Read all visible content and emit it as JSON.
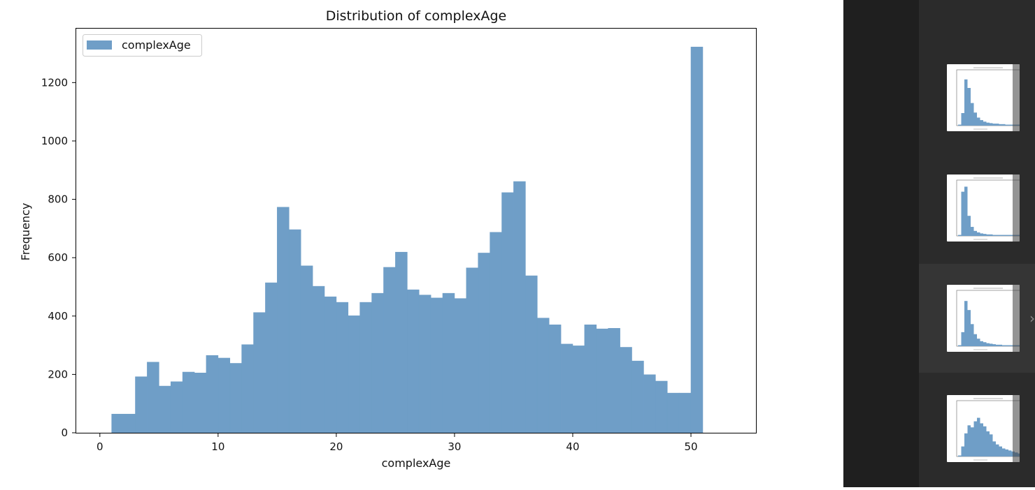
{
  "chart_data": {
    "type": "histogram",
    "title": "Distribution of complexAge",
    "xlabel": "complexAge",
    "ylabel": "Frequency",
    "legend": {
      "label": "complexAge",
      "position": "top-left"
    },
    "color": "#6f9ec7",
    "xlim": [
      -2,
      55.5
    ],
    "ylim": [
      0,
      1385
    ],
    "xticks": [
      0,
      10,
      20,
      30,
      40,
      50
    ],
    "yticks": [
      0,
      200,
      400,
      600,
      800,
      1000,
      1200
    ],
    "bins": [
      [
        1,
        3,
        64
      ],
      [
        3,
        4,
        192
      ],
      [
        4,
        5,
        242
      ],
      [
        5,
        6,
        160
      ],
      [
        6,
        7,
        175
      ],
      [
        7,
        8,
        208
      ],
      [
        8,
        9,
        205
      ],
      [
        9,
        10,
        265
      ],
      [
        10,
        11,
        256
      ],
      [
        11,
        12,
        238
      ],
      [
        12,
        13,
        302
      ],
      [
        13,
        14,
        412
      ],
      [
        14,
        15,
        514
      ],
      [
        15,
        16,
        773
      ],
      [
        16,
        17,
        696
      ],
      [
        17,
        18,
        572
      ],
      [
        18,
        19,
        502
      ],
      [
        19,
        20,
        466
      ],
      [
        20,
        21,
        447
      ],
      [
        21,
        22,
        401
      ],
      [
        22,
        23,
        447
      ],
      [
        23,
        24,
        478
      ],
      [
        24,
        25,
        567
      ],
      [
        25,
        26,
        619
      ],
      [
        26,
        27,
        490
      ],
      [
        27,
        28,
        472
      ],
      [
        28,
        29,
        462
      ],
      [
        29,
        30,
        478
      ],
      [
        30,
        31,
        460
      ],
      [
        31,
        32,
        565
      ],
      [
        32,
        33,
        616
      ],
      [
        33,
        34,
        687
      ],
      [
        34,
        35,
        823
      ],
      [
        35,
        36,
        861
      ],
      [
        36,
        37,
        538
      ],
      [
        37,
        38,
        393
      ],
      [
        38,
        39,
        370
      ],
      [
        39,
        40,
        304
      ],
      [
        40,
        41,
        298
      ],
      [
        41,
        42,
        370
      ],
      [
        42,
        43,
        356
      ],
      [
        43,
        44,
        358
      ],
      [
        44,
        45,
        293
      ],
      [
        45,
        46,
        246
      ],
      [
        46,
        47,
        199
      ],
      [
        47,
        48,
        177
      ],
      [
        48,
        49,
        136
      ],
      [
        49,
        50,
        136
      ],
      [
        50,
        51,
        1322
      ]
    ]
  },
  "sidebar": {
    "thumbnails": [
      {
        "name": "thumbnail-1",
        "active": false
      },
      {
        "name": "thumbnail-2",
        "active": false
      },
      {
        "name": "thumbnail-3",
        "active": false
      },
      {
        "name": "thumbnail-4",
        "active": true
      },
      {
        "name": "thumbnail-5",
        "active": false
      }
    ],
    "collapse_icon": "chevron-right-icon"
  }
}
